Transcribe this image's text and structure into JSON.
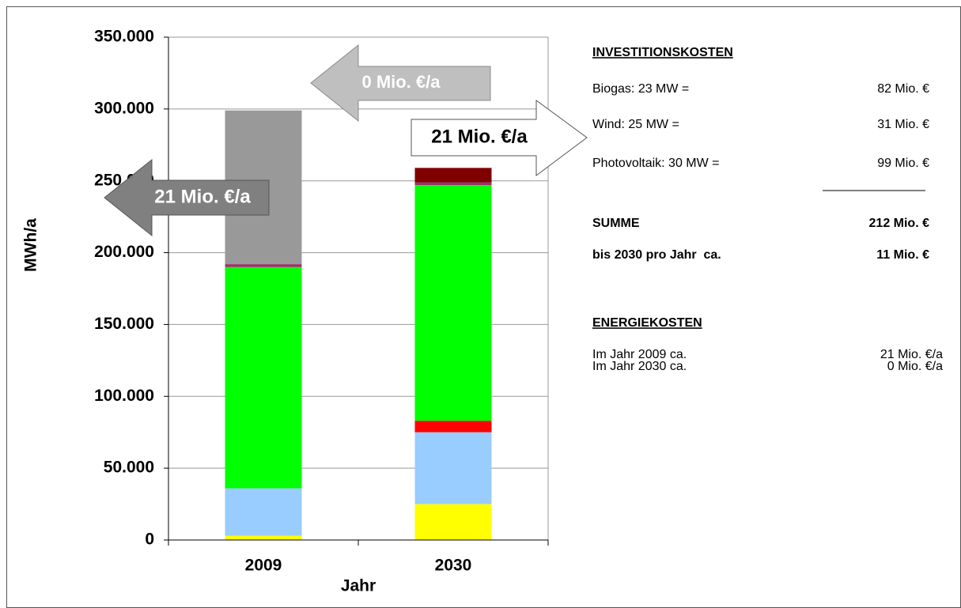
{
  "chart_data": {
    "type": "stacked_bar",
    "x_label": "Jahr",
    "y_label": "MWh/a",
    "categories": [
      "2009",
      "2030"
    ],
    "series": [
      {
        "color": "#ffff00",
        "values": [
          3000,
          25000
        ]
      },
      {
        "color": "#99ccff",
        "values": [
          33000,
          50000
        ]
      },
      {
        "color": "#ff0000",
        "values": [
          0,
          8000
        ]
      },
      {
        "color": "#00ff00",
        "values": [
          154000,
          164000
        ]
      },
      {
        "color": "#993366",
        "values": [
          2000,
          2000
        ]
      },
      {
        "color": "#800000",
        "values": [
          0,
          10000
        ]
      },
      {
        "color": "#999999",
        "values": [
          107000,
          0
        ]
      }
    ],
    "ylim": [
      0,
      350000
    ],
    "yticks": [
      0,
      {
        "value": 50000,
        "label": "50.000"
      },
      {
        "value": 100000,
        "label": "100.000"
      },
      {
        "value": 150000,
        "label": "150.000"
      },
      {
        "value": 200000,
        "label": "200.000"
      },
      {
        "value": 250000,
        "label": "250.000"
      },
      {
        "value": 300000,
        "label": "300.000"
      },
      {
        "value": 350000,
        "label": "350.000"
      }
    ],
    "grid": true,
    "annotations": [
      "0 Mio. €/a",
      "21 Mio. €/a",
      "21 Mio. €/a"
    ],
    "side_panel": {
      "investment_title": "INVESTITIONSKOSTEN",
      "investment_rows": [
        [
          "Biogas: 23 MW =",
          "82 Mio. €"
        ],
        [
          "Wind: 25 MW =",
          "31 Mio. €"
        ],
        [
          "Photovoltaik: 30 MW =",
          "99 Mio. €"
        ]
      ],
      "sum_row": [
        "SUMME",
        "212 Mio. €"
      ],
      "per_year_row": [
        "bis 2030 pro Jahr  ca.",
        "11 Mio. €"
      ],
      "energy_title": "ENERGIEKOSTEN",
      "energy_rows": [
        [
          "Im Jahr 2009 ca.",
          "21 Mio. €/a"
        ],
        [
          "Im Jahr 2030 ca.",
          "0 Mio. €/a"
        ]
      ]
    }
  }
}
